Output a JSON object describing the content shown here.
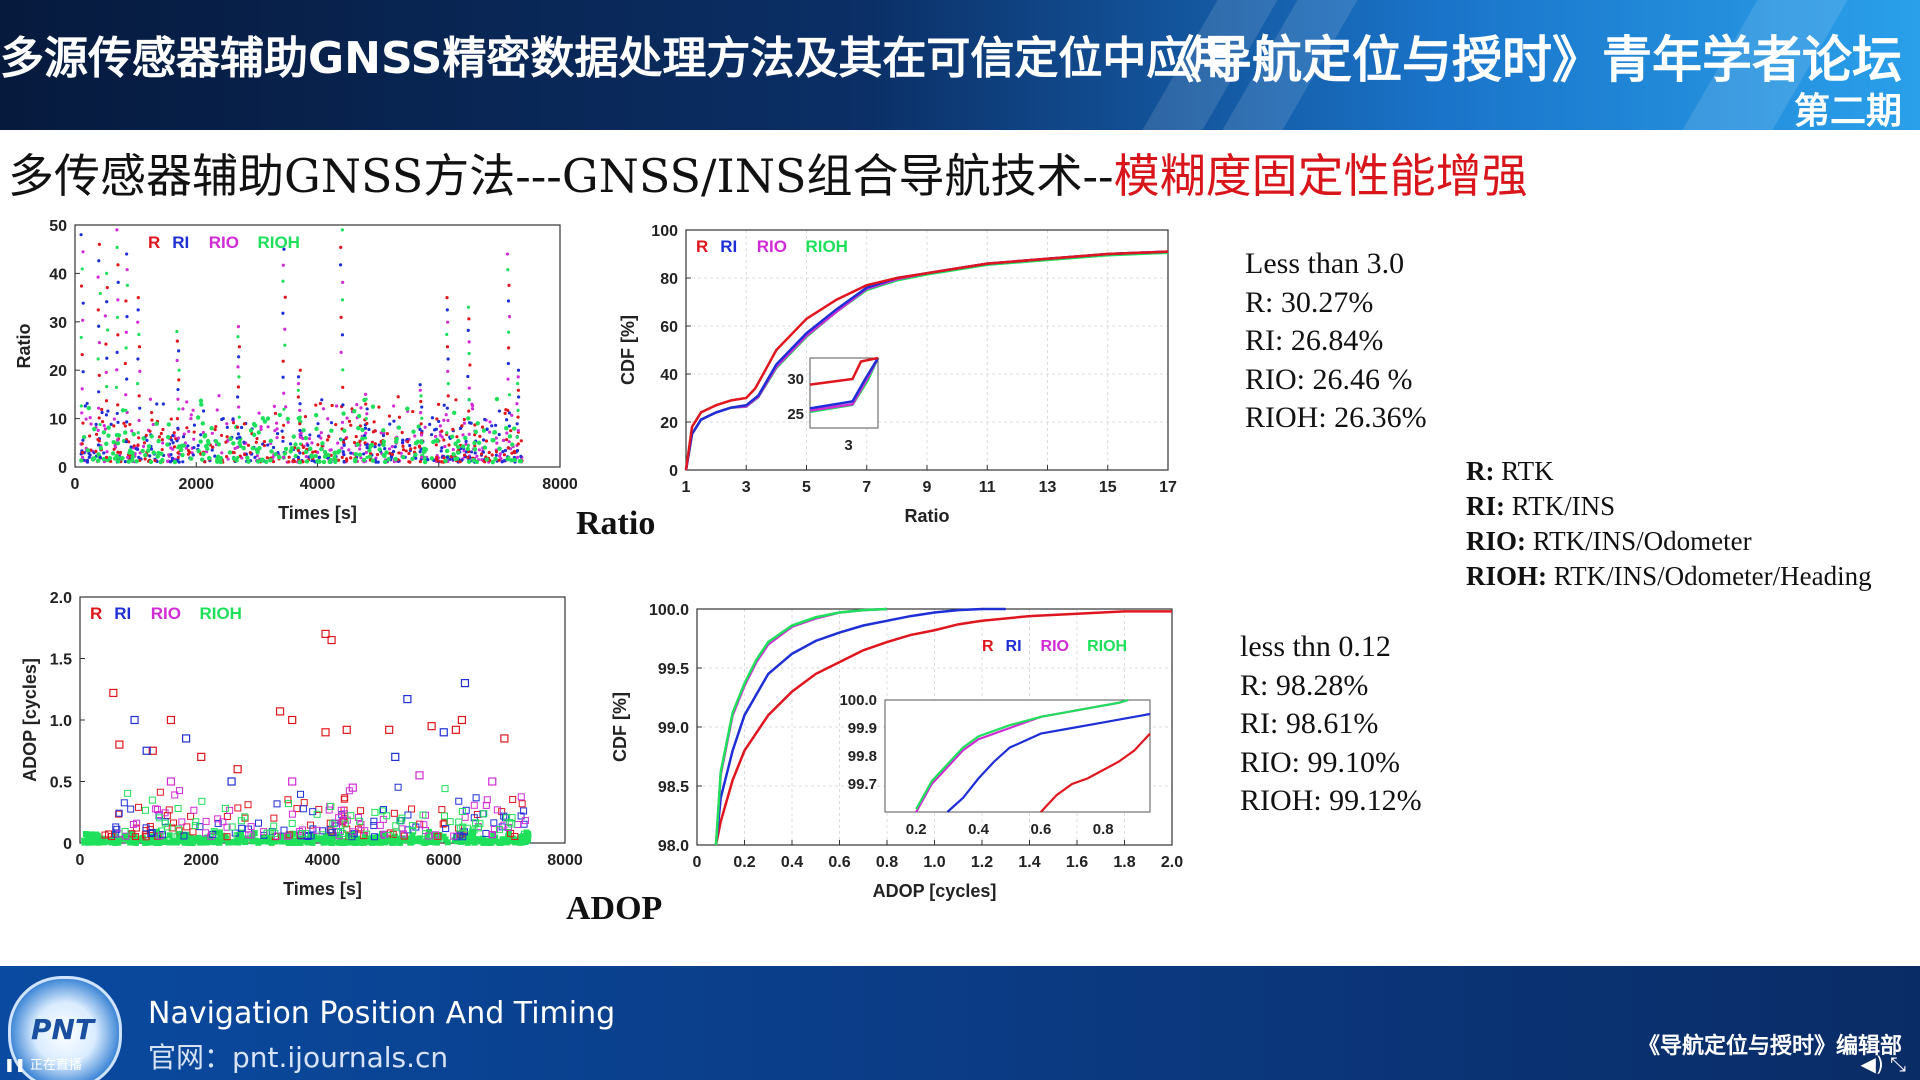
{
  "header": {
    "title": "多源传感器辅助GNSS精密数据处理方法及其在可信定位中应用",
    "forum": "《导航定位与授时》青年学者论坛",
    "issue": "第二期"
  },
  "slide": {
    "title_main": "多传感器辅助GNSS方法---GNSS/INS组合导航技术--",
    "title_highlight": "模糊度固定性能增强"
  },
  "colors": {
    "R": "#e0161e",
    "RI": "#1f2fd6",
    "RIO": "#d12bd6",
    "RIOH": "#1fe05a"
  },
  "captions": {
    "ratio": "Ratio",
    "adop": "ADOP"
  },
  "stats_ratio": [
    "Less than 3.0",
    "R: 30.27%",
    "RI: 26.84%",
    "RIO: 26.46 %",
    "RIOH: 26.36%"
  ],
  "stats_adop": [
    "less thn 0.12",
    "R: 98.28%",
    "RI: 98.61%",
    "RIO: 99.10%",
    "RIOH: 99.12%"
  ],
  "legend": [
    {
      "key": "R:",
      "text": " RTK"
    },
    {
      "key": "RI:",
      "text": " RTK/INS"
    },
    {
      "key": "RIO:",
      "text": " RTK/INS/Odometer"
    },
    {
      "key": "RIOH:",
      "text": " RTK/INS/Odometer/Heading"
    }
  ],
  "footer": {
    "name": "Navigation Position And Timing",
    "url": "官网：pnt.ijournals.cn",
    "editor": "《导航定位与授时》编辑部",
    "logo_text": "PNT",
    "live_label": "正在直播",
    "controls": "◀) ⤡"
  },
  "chart_data": [
    {
      "id": "ratio-time",
      "type": "scatter",
      "xlabel": "Times [s]",
      "ylabel": "Ratio",
      "xlim": [
        0,
        8000
      ],
      "ylim": [
        0,
        50
      ],
      "xticks": [
        0,
        2000,
        4000,
        6000,
        8000
      ],
      "yticks": [
        0,
        10,
        20,
        30,
        40,
        50
      ],
      "series_labels": [
        "R",
        "RI",
        "RIO",
        "RIOH"
      ],
      "legend": "top-left",
      "grid": false,
      "spikes": [
        [
          120,
          48
        ],
        [
          400,
          46
        ],
        [
          520,
          40
        ],
        [
          700,
          49
        ],
        [
          850,
          44
        ],
        [
          1050,
          35
        ],
        [
          1700,
          28
        ],
        [
          2700,
          29
        ],
        [
          3450,
          45
        ],
        [
          3700,
          20
        ],
        [
          4400,
          49
        ],
        [
          4800,
          15
        ],
        [
          5700,
          17
        ],
        [
          6150,
          35
        ],
        [
          6500,
          33
        ],
        [
          7150,
          44
        ],
        [
          7300,
          20
        ]
      ],
      "approx_xmax": 7400
    },
    {
      "id": "ratio-cdf",
      "type": "line",
      "xlabel": "Ratio",
      "ylabel": "CDF [%]",
      "xlim": [
        1,
        17
      ],
      "ylim": [
        0,
        100
      ],
      "xticks": [
        1,
        3,
        5,
        7,
        9,
        11,
        13,
        15,
        17
      ],
      "yticks": [
        0,
        20,
        40,
        60,
        80,
        100
      ],
      "legend": "top-left",
      "grid": true,
      "series": [
        {
          "name": "R",
          "x": [
            1,
            1.2,
            1.5,
            2,
            2.5,
            3,
            3.3,
            4,
            5,
            6,
            7,
            8,
            9,
            10,
            11,
            13,
            15,
            17
          ],
          "y": [
            0,
            18,
            24,
            27,
            29,
            30,
            34,
            50,
            63,
            71,
            77,
            80,
            82,
            84,
            86,
            88,
            90,
            91
          ]
        },
        {
          "name": "RI",
          "x": [
            1,
            1.2,
            1.5,
            2,
            2.5,
            3,
            3.4,
            4,
            5,
            6,
            7,
            8,
            9,
            10,
            11,
            13,
            15,
            17
          ],
          "y": [
            0,
            15,
            21,
            24,
            26,
            27,
            31,
            44,
            57,
            67,
            76,
            80,
            82,
            84,
            86,
            88,
            90,
            91
          ]
        },
        {
          "name": "RIO",
          "x": [
            1,
            1.2,
            1.5,
            2,
            2.5,
            3,
            3.4,
            4,
            5,
            6,
            7,
            8,
            9,
            10,
            11,
            13,
            15,
            17
          ],
          "y": [
            0,
            15,
            21,
            24,
            26,
            26.5,
            30.5,
            43,
            56,
            66,
            75.5,
            79.5,
            82,
            84,
            86,
            88,
            90,
            91
          ]
        },
        {
          "name": "RIOH",
          "x": [
            1,
            1.2,
            1.5,
            2,
            2.5,
            3,
            3.4,
            4,
            5,
            6,
            7,
            8,
            9,
            10,
            11,
            13,
            15,
            17
          ],
          "y": [
            0,
            15,
            21,
            24,
            26,
            26.4,
            30.3,
            42.5,
            55.5,
            66,
            75,
            79,
            81.5,
            83.5,
            85.5,
            87.5,
            89.5,
            90.5
          ]
        }
      ],
      "inset": {
        "xlim": [
          2.5,
          3.3
        ],
        "ylim": [
          23,
          33
        ],
        "yticks": [
          25,
          30
        ],
        "xticks": [
          3
        ]
      }
    },
    {
      "id": "adop-time",
      "type": "scatter",
      "xlabel": "Times [s]",
      "ylabel": "ADOP [cycles]",
      "xlim": [
        0,
        8000
      ],
      "ylim": [
        0,
        2.0
      ],
      "xticks": [
        0,
        2000,
        4000,
        6000,
        8000
      ],
      "yticks": [
        "0",
        "0.5",
        "1.0",
        "1.5",
        "2.0"
      ],
      "series_labels": [
        "R",
        "RI",
        "RIO",
        "RIOH"
      ],
      "legend": "top-left",
      "grid": false,
      "points_R": [
        [
          550,
          1.22
        ],
        [
          650,
          0.8
        ],
        [
          1500,
          1.0
        ],
        [
          3300,
          1.07
        ],
        [
          3500,
          1.0
        ],
        [
          4050,
          1.7
        ],
        [
          4150,
          1.65
        ],
        [
          4050,
          0.9
        ],
        [
          4400,
          0.92
        ],
        [
          5100,
          0.92
        ],
        [
          5800,
          0.95
        ],
        [
          6200,
          0.92
        ],
        [
          6300,
          1.0
        ],
        [
          7000,
          0.85
        ],
        [
          2000,
          0.7
        ],
        [
          2600,
          0.6
        ],
        [
          1200,
          0.75
        ]
      ],
      "points_RI": [
        [
          900,
          1.0
        ],
        [
          1750,
          0.85
        ],
        [
          5400,
          1.17
        ],
        [
          6350,
          1.3
        ],
        [
          6000,
          0.9
        ],
        [
          1100,
          0.75
        ],
        [
          5200,
          0.7
        ],
        [
          2500,
          0.5
        ]
      ],
      "points_RIO": [
        [
          3500,
          0.5
        ],
        [
          5600,
          0.55
        ],
        [
          4500,
          0.45
        ],
        [
          1500,
          0.5
        ],
        [
          6800,
          0.5
        ]
      ],
      "approx_xmax": 7400
    },
    {
      "id": "adop-cdf",
      "type": "line",
      "xlabel": "ADOP [cycles]",
      "ylabel": "CDF [%]",
      "xlim": [
        0,
        2.0
      ],
      "ylim": [
        98.0,
        100.0
      ],
      "xticks": [
        "0",
        "0.2",
        "0.4",
        "0.6",
        "0.8",
        "1.0",
        "1.2",
        "1.4",
        "1.6",
        "1.8",
        "2.0"
      ],
      "yticks": [
        "98.0",
        "98.5",
        "99.0",
        "99.5",
        "100.0"
      ],
      "legend": "inside-top-right",
      "grid": true,
      "series": [
        {
          "name": "R",
          "x": [
            0.08,
            0.1,
            0.15,
            0.2,
            0.3,
            0.4,
            0.5,
            0.6,
            0.7,
            0.8,
            0.9,
            1.0,
            1.1,
            1.2,
            1.4,
            1.6,
            1.8,
            2.0
          ],
          "y": [
            98.0,
            98.2,
            98.55,
            98.8,
            99.1,
            99.3,
            99.45,
            99.55,
            99.65,
            99.72,
            99.78,
            99.82,
            99.87,
            99.9,
            99.94,
            99.96,
            99.98,
            99.98
          ]
        },
        {
          "name": "RI",
          "x": [
            0.08,
            0.1,
            0.15,
            0.2,
            0.3,
            0.4,
            0.5,
            0.6,
            0.7,
            0.8,
            0.9,
            1.0,
            1.1,
            1.2,
            1.3
          ],
          "y": [
            98.0,
            98.4,
            98.8,
            99.1,
            99.45,
            99.62,
            99.73,
            99.8,
            99.86,
            99.9,
            99.94,
            99.97,
            99.99,
            100.0,
            100.0
          ]
        },
        {
          "name": "RIO",
          "x": [
            0.08,
            0.1,
            0.15,
            0.2,
            0.25,
            0.3,
            0.4,
            0.5,
            0.6,
            0.7,
            0.8
          ],
          "y": [
            98.0,
            98.6,
            99.1,
            99.35,
            99.55,
            99.7,
            99.85,
            99.92,
            99.97,
            99.99,
            100.0
          ]
        },
        {
          "name": "RIOH",
          "x": [
            0.08,
            0.1,
            0.15,
            0.2,
            0.25,
            0.3,
            0.4,
            0.5,
            0.6,
            0.7,
            0.8
          ],
          "y": [
            98.0,
            98.62,
            99.12,
            99.37,
            99.57,
            99.72,
            99.86,
            99.93,
            99.97,
            99.99,
            100.0
          ]
        }
      ],
      "inset": {
        "xlim": [
          0.1,
          0.95
        ],
        "ylim": [
          99.6,
          100.0
        ],
        "xticks": [
          "0.2",
          "0.4",
          "0.6",
          "0.8"
        ],
        "yticks": [
          "99.7",
          "99.8",
          "99.9",
          "100.0"
        ],
        "series": [
          {
            "name": "R",
            "x": [
              0.6,
              0.65,
              0.7,
              0.75,
              0.8,
              0.85,
              0.9,
              0.95
            ],
            "y": [
              99.6,
              99.66,
              99.7,
              99.72,
              99.75,
              99.78,
              99.82,
              99.88
            ]
          },
          {
            "name": "RI",
            "x": [
              0.3,
              0.35,
              0.4,
              0.45,
              0.5,
              0.6,
              0.7,
              0.8,
              0.9,
              0.95
            ],
            "y": [
              99.6,
              99.65,
              99.72,
              99.78,
              99.83,
              99.88,
              99.9,
              99.92,
              99.94,
              99.95
            ]
          },
          {
            "name": "RIO",
            "x": [
              0.2,
              0.25,
              0.3,
              0.35,
              0.4,
              0.5,
              0.6,
              0.7,
              0.8,
              0.85,
              0.88
            ],
            "y": [
              99.6,
              99.7,
              99.76,
              99.82,
              99.86,
              99.9,
              99.94,
              99.96,
              99.98,
              99.99,
              100.0
            ]
          },
          {
            "name": "RIOH",
            "x": [
              0.2,
              0.25,
              0.3,
              0.35,
              0.4,
              0.5,
              0.6,
              0.7,
              0.8,
              0.85,
              0.88
            ],
            "y": [
              99.61,
              99.71,
              99.77,
              99.83,
              99.87,
              99.91,
              99.94,
              99.96,
              99.98,
              99.99,
              100.0
            ]
          }
        ]
      }
    }
  ]
}
